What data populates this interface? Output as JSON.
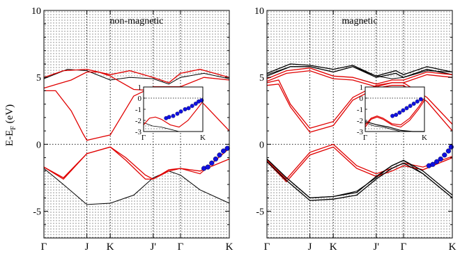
{
  "figure": {
    "ylabel": "E-E",
    "ylabel_sub": "F",
    "ylabel_unit": " (eV)"
  },
  "chart_data": [
    {
      "type": "line",
      "title": "non-magnetic",
      "ylabel": "E-E_F (eV)",
      "ylim": [
        -7,
        10
      ],
      "yticks": [
        -5,
        0,
        5,
        10
      ],
      "x_ticks": [
        "Γ",
        "J",
        "K",
        "J'",
        "Γ",
        "K"
      ],
      "x_tick_pos": [
        0,
        1.1,
        1.7,
        2.8,
        3.5,
        4.75
      ],
      "xlim": [
        0,
        4.75
      ],
      "shaded_below": {
        "name": "bulk-lower-edge",
        "x": [
          0,
          0.5,
          1.1,
          1.7,
          2.3,
          2.8,
          3.2,
          3.5,
          4.0,
          4.75
        ],
        "y": [
          -1.8,
          -3.0,
          -4.5,
          -4.4,
          -3.8,
          -2.5,
          -2.0,
          -2.3,
          -3.4,
          -4.4
        ]
      },
      "shaded_above": {
        "name": "bulk-upper-edge",
        "x": [
          0,
          0.6,
          1.1,
          1.7,
          2.2,
          2.8,
          3.2,
          3.5,
          4.1,
          4.75
        ],
        "y": [
          4.9,
          5.6,
          5.5,
          4.8,
          5.0,
          4.9,
          4.5,
          5.0,
          5.3,
          4.9
        ]
      },
      "series": [
        {
          "x": [
            0,
            0.5,
            1.1,
            1.7,
            2.2,
            2.8,
            3.2,
            3.5,
            4.0,
            4.75
          ],
          "y": [
            5.0,
            5.5,
            5.6,
            5.2,
            5.5,
            5.0,
            4.6,
            5.3,
            5.6,
            5.0
          ]
        },
        {
          "x": [
            0,
            0.3,
            0.7,
            1.0,
            1.1,
            1.4,
            1.7,
            2.3,
            2.8,
            3.5,
            4.1,
            4.75
          ],
          "y": [
            4.0,
            4.0,
            2.5,
            0.8,
            0.3,
            0.5,
            0.7,
            3.6,
            4.3,
            4.3,
            5.0,
            4.8
          ]
        },
        {
          "x": [
            0,
            0.35,
            0.7,
            1.1,
            1.4,
            1.7,
            2.3,
            2.8,
            3.5,
            4.1,
            4.75
          ],
          "y": [
            4.2,
            4.5,
            4.8,
            5.4,
            5.4,
            5.1,
            4.1,
            4.0,
            4.2,
            3.0,
            1.0
          ]
        },
        {
          "x": [
            0,
            0.5,
            1.1,
            1.7,
            2.1,
            2.6,
            2.8,
            3.2,
            3.5,
            4.0,
            4.75
          ],
          "y": [
            -1.7,
            -2.5,
            -0.7,
            -0.2,
            -1.0,
            -2.3,
            -2.6,
            -1.9,
            -1.8,
            -2.0,
            -1.1
          ]
        },
        {
          "x": [
            0,
            0.5,
            1.1,
            1.7,
            2.1,
            2.6,
            2.8,
            3.2,
            3.5,
            4.0,
            4.75
          ],
          "y": [
            -1.7,
            -2.6,
            -0.7,
            -0.2,
            -1.2,
            -2.6,
            -2.6,
            -2.0,
            -1.8,
            -2.2,
            -0.3
          ]
        }
      ],
      "dots": {
        "x": [
          4.1,
          4.2,
          4.3,
          4.4,
          4.5,
          4.6,
          4.7
        ],
        "y": [
          -1.8,
          -1.7,
          -1.4,
          -1.1,
          -0.8,
          -0.5,
          -0.3
        ]
      },
      "inset": {
        "ylim": [
          -3,
          1
        ],
        "yticks": [
          1,
          0,
          -1,
          -2,
          -3
        ],
        "x_ticks": [
          "Γ",
          "K"
        ],
        "x_tick_pos": [
          0,
          1
        ],
        "shaded_below": {
          "x": [
            0,
            0.15,
            0.3,
            0.45,
            0.6,
            0.7,
            1.0
          ],
          "y": [
            -2.2,
            -2.5,
            -2.6,
            -2.8,
            -3.0,
            -3.2,
            -3.6
          ]
        },
        "series": [
          {
            "x": [
              0,
              0.1,
              0.2,
              0.3,
              0.45,
              0.6,
              0.75,
              0.9,
              1.0
            ],
            "y": [
              -2.4,
              -1.8,
              -1.7,
              -1.9,
              -2.4,
              -2.6,
              -2.0,
              -1.0,
              -0.3
            ]
          }
        ],
        "dots": {
          "x": [
            0.38,
            0.43,
            0.5,
            0.57,
            0.63,
            0.7,
            0.76,
            0.82,
            0.88,
            0.93,
            0.98
          ],
          "y": [
            -1.8,
            -1.7,
            -1.6,
            -1.4,
            -1.2,
            -1.0,
            -0.9,
            -0.7,
            -0.5,
            -0.3,
            -0.2
          ]
        }
      }
    },
    {
      "type": "line",
      "title": "magnetic",
      "ylim": [
        -7,
        10
      ],
      "yticks": [
        -5,
        0,
        5,
        10
      ],
      "x_ticks": [
        "Γ",
        "J",
        "K",
        "J'",
        "Γ",
        "K"
      ],
      "x_tick_pos": [
        0,
        1.1,
        1.7,
        2.8,
        3.5,
        4.75
      ],
      "xlim": [
        0,
        4.75
      ],
      "shaded_below": {
        "name": "bulk-lower-edge",
        "x": [
          0,
          0.5,
          1.1,
          1.7,
          2.3,
          2.8,
          3.2,
          3.5,
          4.0,
          4.75
        ],
        "y": [
          -1.1,
          -2.5,
          -4.0,
          -3.9,
          -3.5,
          -2.5,
          -1.6,
          -1.2,
          -2.2,
          -4.0
        ]
      },
      "shaded_above": {
        "name": "bulk-upper-edge",
        "x": [
          0,
          0.6,
          1.1,
          1.7,
          2.2,
          2.8,
          3.2,
          3.5,
          4.1,
          4.75
        ],
        "y": [
          5.2,
          5.8,
          5.8,
          5.4,
          5.8,
          5.1,
          4.9,
          5.0,
          5.5,
          5.4
        ]
      },
      "series": [
        {
          "x": [
            0,
            0.6,
            1.1,
            1.7,
            2.2,
            2.8,
            3.3,
            3.5,
            4.1,
            4.75
          ],
          "y": [
            5.3,
            6.0,
            5.9,
            5.6,
            5.9,
            5.1,
            5.5,
            5.2,
            5.8,
            5.4
          ],
          "color": "#000"
        },
        {
          "x": [
            0,
            0.6,
            1.1,
            1.7,
            2.2,
            2.8,
            3.3,
            3.5,
            4.1,
            4.75
          ],
          "y": [
            5.1,
            5.8,
            5.8,
            5.4,
            5.8,
            5.0,
            5.3,
            5.0,
            5.6,
            5.2
          ],
          "color": "#000"
        },
        {
          "x": [
            0,
            0.3,
            0.6,
            1.1,
            1.7,
            2.2,
            2.8,
            3.2,
            3.5,
            4.1,
            4.75
          ],
          "y": [
            4.6,
            4.8,
            3.0,
            1.2,
            1.7,
            3.5,
            4.4,
            4.6,
            4.6,
            3.5,
            1.5
          ],
          "color": "#e00000"
        },
        {
          "x": [
            0,
            0.3,
            0.6,
            1.1,
            1.7,
            2.2,
            2.8,
            3.2,
            3.5,
            4.1,
            4.75
          ],
          "y": [
            4.4,
            4.5,
            2.8,
            0.9,
            1.4,
            3.3,
            4.2,
            4.4,
            4.4,
            3.2,
            1.0
          ],
          "color": "#e00000"
        },
        {
          "x": [
            0,
            0.5,
            1.1,
            1.7,
            2.2,
            2.8,
            3.2,
            3.5,
            4.1,
            4.75
          ],
          "y": [
            4.9,
            5.5,
            5.7,
            5.1,
            5.0,
            4.5,
            4.8,
            4.8,
            5.4,
            5.2
          ],
          "color": "#e00000"
        },
        {
          "x": [
            0,
            0.5,
            1.1,
            1.7,
            2.2,
            2.8,
            3.2,
            3.5,
            4.1,
            4.75
          ],
          "y": [
            4.7,
            5.3,
            5.5,
            4.9,
            4.8,
            4.3,
            4.6,
            4.6,
            5.2,
            5.0
          ],
          "color": "#e00000"
        },
        {
          "x": [
            0,
            0.5,
            1.1,
            1.7,
            2.3,
            2.8,
            3.2,
            3.5,
            4.0,
            4.75
          ],
          "y": [
            -1.2,
            -2.6,
            -0.6,
            0.0,
            -1.6,
            -2.2,
            -1.8,
            -1.4,
            -1.7,
            -0.9
          ],
          "color": "#e00000"
        },
        {
          "x": [
            0,
            0.5,
            1.1,
            1.7,
            2.3,
            2.8,
            3.2,
            3.5,
            4.0,
            4.75
          ],
          "y": [
            -1.3,
            -2.8,
            -0.8,
            -0.2,
            -1.8,
            -2.4,
            -2.0,
            -1.6,
            -1.9,
            -1.0
          ],
          "color": "#e00000"
        },
        {
          "x": [
            0,
            0.5,
            1.1,
            1.7,
            2.3,
            2.8,
            3.2,
            3.5,
            4.0,
            4.75
          ],
          "y": [
            -1.1,
            -2.5,
            -4.0,
            -3.9,
            -3.6,
            -2.4,
            -1.6,
            -1.2,
            -2.0,
            -3.8
          ],
          "color": "#000"
        },
        {
          "x": [
            0,
            0.5,
            1.1,
            1.7,
            2.3,
            2.8,
            3.2,
            3.5,
            4.0,
            4.75
          ],
          "y": [
            -1.3,
            -2.7,
            -4.2,
            -4.1,
            -3.8,
            -2.6,
            -1.8,
            -1.4,
            -2.2,
            -4.0
          ],
          "color": "#000"
        }
      ],
      "dots": {
        "x": [
          4.15,
          4.25,
          4.35,
          4.45,
          4.55,
          4.65,
          4.72
        ],
        "y": [
          -1.6,
          -1.5,
          -1.3,
          -1.1,
          -0.8,
          -0.5,
          -0.2
        ]
      },
      "inset": {
        "ylim": [
          -3,
          1
        ],
        "yticks": [
          1,
          0,
          -1,
          -2,
          -3
        ],
        "x_ticks": [
          "Γ",
          "K"
        ],
        "x_tick_pos": [
          0,
          1
        ],
        "shaded_below": {
          "x": [
            0,
            0.15,
            0.3,
            0.45,
            0.6,
            0.8,
            1.0
          ],
          "y": [
            -2.2,
            -2.5,
            -2.6,
            -2.8,
            -3.0,
            -3.4,
            -3.8
          ]
        },
        "series": [
          {
            "x": [
              0,
              0.1,
              0.2,
              0.3,
              0.45,
              0.6,
              0.75,
              0.9,
              1.0
            ],
            "y": [
              -2.6,
              -1.9,
              -1.7,
              -1.9,
              -2.4,
              -2.6,
              -2.0,
              -1.0,
              -0.2
            ],
            "color": "#e00000"
          },
          {
            "x": [
              0,
              0.1,
              0.2,
              0.3,
              0.45,
              0.6,
              0.75,
              0.9,
              1.0
            ],
            "y": [
              -2.4,
              -1.8,
              -1.6,
              -1.8,
              -2.3,
              -2.4,
              -1.8,
              -0.8,
              0.0
            ],
            "color": "#e00000"
          },
          {
            "x": [
              0,
              0.2,
              0.4,
              0.6,
              0.8,
              1.0
            ],
            "y": [
              -2.1,
              -2.4,
              -2.6,
              -2.9,
              -3.3,
              -3.7
            ],
            "color": "#000"
          }
        ],
        "dots": {
          "x": [
            0.46,
            0.52,
            0.58,
            0.64,
            0.7,
            0.76,
            0.82,
            0.88,
            0.94
          ],
          "y": [
            -1.6,
            -1.5,
            -1.3,
            -1.1,
            -0.9,
            -0.7,
            -0.5,
            -0.3,
            -0.1
          ]
        }
      }
    }
  ]
}
